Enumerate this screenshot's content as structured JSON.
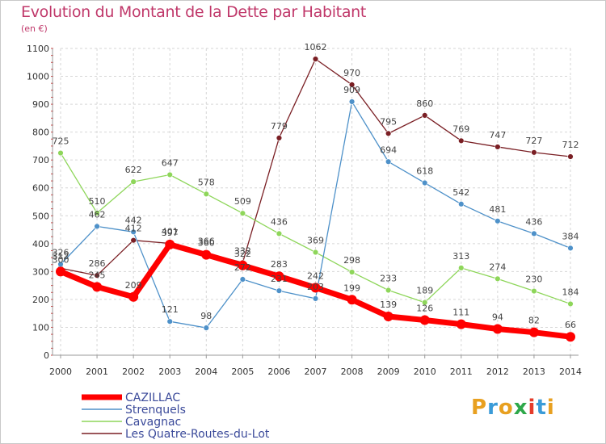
{
  "title": "Evolution du Montant de la Dette par Habitant",
  "subtitle": "(en €)",
  "logo": {
    "text": "Proxiti",
    "colors": [
      "#e8a020",
      "#3a9bd8",
      "#e8a020",
      "#2ea84a",
      "#e53b2a",
      "#3a9bd8",
      "#e8a020"
    ]
  },
  "chart_data": {
    "type": "line",
    "title": "Evolution du Montant de la Dette par Habitant",
    "ylabel": "(en €)",
    "x": [
      "2000",
      "2001",
      "2002",
      "2003",
      "2004",
      "2005",
      "2006",
      "2007",
      "2008",
      "2009",
      "2010",
      "2011",
      "2012",
      "2013",
      "2014"
    ],
    "ylim": [
      0,
      1100
    ],
    "yticks": [
      0,
      100,
      200,
      300,
      400,
      500,
      600,
      700,
      800,
      900,
      1000,
      1100
    ],
    "grid": true,
    "legend": "bottom-left",
    "series": [
      {
        "name": "CAZILLAC",
        "color": "#ff0000",
        "values": [
          300,
          245,
          209,
          397,
          360,
          322,
          283,
          242,
          199,
          139,
          126,
          111,
          94,
          82,
          66
        ],
        "labels": [
          "300",
          "245",
          "209",
          "397",
          "360",
          "322",
          "283",
          "242",
          "199",
          "139",
          "126",
          "111",
          "94",
          "82",
          "66"
        ]
      },
      {
        "name": "Strenquels",
        "color": "#4e91c9",
        "values": [
          326,
          462,
          442,
          121,
          98,
          272,
          231,
          203,
          909,
          694,
          618,
          542,
          481,
          436,
          384
        ],
        "labels": [
          "326",
          "462",
          "442",
          "121",
          "98",
          "272",
          "231",
          "203",
          "909",
          "694",
          "618",
          "542",
          "481",
          "436",
          "384"
        ]
      },
      {
        "name": "Cavagnac",
        "color": "#8ed65a",
        "values": [
          725,
          510,
          622,
          647,
          578,
          509,
          436,
          369,
          298,
          233,
          189,
          313,
          274,
          230,
          184
        ],
        "labels": [
          "725",
          "510",
          "622",
          "647",
          "578",
          "509",
          "436",
          "369",
          "298",
          "233",
          "189",
          "313",
          "274",
          "230",
          "184"
        ]
      },
      {
        "name": "Les Quatre-Routes-du-Lot",
        "color": "#7a1f24",
        "values": [
          312,
          286,
          412,
          401,
          366,
          332,
          779,
          1062,
          970,
          795,
          860,
          769,
          747,
          727,
          712
        ],
        "labels": [
          "312",
          "286",
          "412",
          "401",
          "366",
          "332",
          "779",
          "1062",
          "970",
          "795",
          "860",
          "769",
          "747",
          "727",
          "712"
        ]
      }
    ]
  }
}
